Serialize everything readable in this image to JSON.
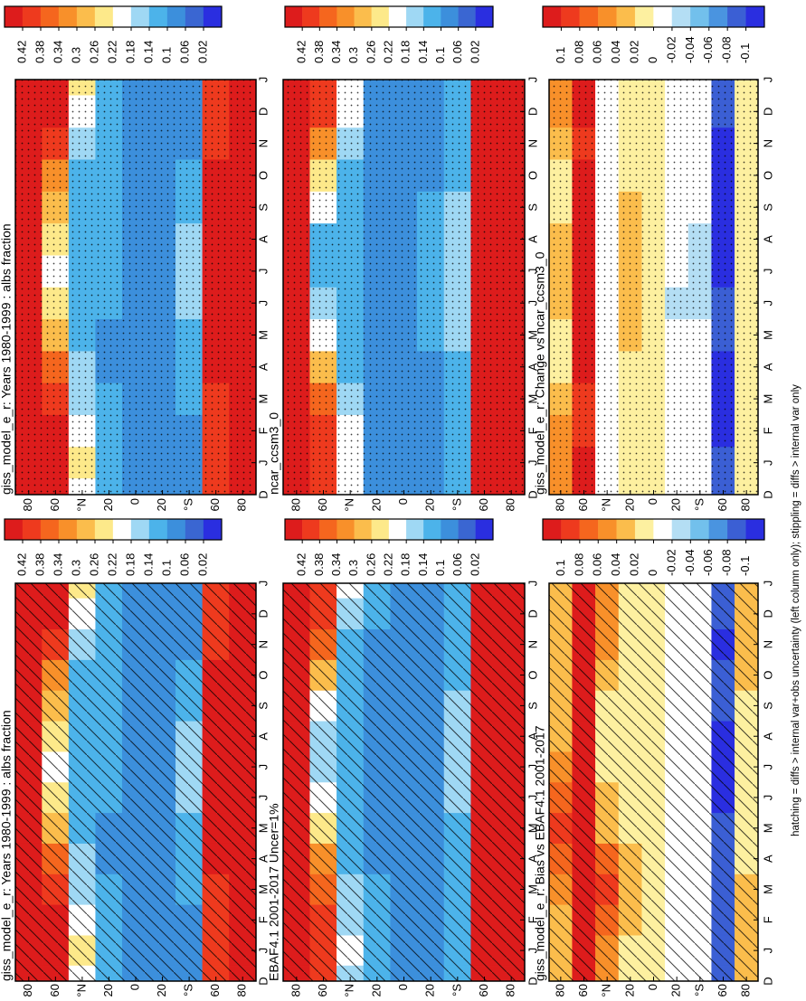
{
  "caption": "hatching = diffs > internal var+obs uncertainty (left column only); stippling = diffs > internal var only",
  "chart_data": [
    {
      "type": "heatmap",
      "title": "giss_model_e_r: Years 1980-1999 : albs fraction",
      "overlay": "hatching",
      "categories": [
        "D",
        "J",
        "F",
        "M",
        "A",
        "M",
        "J",
        "J",
        "A",
        "S",
        "O",
        "N",
        "D",
        "J"
      ],
      "ylim": [
        90,
        -90
      ],
      "yticks": [
        80,
        60,
        {
          "value": 40,
          "label": "°N"
        },
        20,
        0,
        {
          "value": -20,
          "label": "20"
        },
        {
          "value": -40,
          "label": "°S"
        },
        {
          "value": -60,
          "label": "60"
        },
        {
          "value": -80,
          "label": "80"
        }
      ],
      "rows": [
        80,
        60,
        40,
        20,
        0,
        -20,
        -40,
        -60,
        -80
      ],
      "z": [
        [
          0.62,
          0.6,
          0.55,
          0.5,
          0.48,
          0.47,
          0.47,
          0.48,
          0.5,
          0.55,
          0.6,
          0.62
        ],
        [
          0.45,
          0.43,
          0.4,
          0.35,
          0.28,
          0.22,
          0.2,
          0.22,
          0.27,
          0.33,
          0.4,
          0.44
        ],
        [
          0.22,
          0.2,
          0.16,
          0.14,
          0.12,
          0.11,
          0.11,
          0.11,
          0.12,
          0.13,
          0.16,
          0.2
        ],
        [
          0.1,
          0.1,
          0.1,
          0.09,
          0.09,
          0.1,
          0.1,
          0.1,
          0.1,
          0.1,
          0.1,
          0.1
        ],
        [
          0.08,
          0.08,
          0.08,
          0.08,
          0.08,
          0.08,
          0.08,
          0.08,
          0.08,
          0.08,
          0.08,
          0.08
        ],
        [
          0.08,
          0.08,
          0.08,
          0.08,
          0.08,
          0.09,
          0.09,
          0.09,
          0.08,
          0.08,
          0.08,
          0.08
        ],
        [
          0.09,
          0.09,
          0.1,
          0.1,
          0.12,
          0.14,
          0.15,
          0.14,
          0.12,
          0.1,
          0.09,
          0.09
        ],
        [
          0.38,
          0.38,
          0.4,
          0.43,
          0.45,
          0.46,
          0.47,
          0.46,
          0.45,
          0.43,
          0.4,
          0.38
        ],
        [
          0.5,
          0.52,
          0.58,
          0.65,
          0.7,
          0.7,
          0.7,
          0.7,
          0.65,
          0.55,
          0.5,
          0.5
        ]
      ],
      "levels": [
        0.42,
        0.38,
        0.34,
        0.3,
        0.26,
        0.22,
        0.18,
        0.14,
        0.1,
        0.06,
        0.02
      ],
      "colors": [
        "#dd1c1c",
        "#ee3a1e",
        "#f5661e",
        "#f8902a",
        "#fbbd4c",
        "#fde98a",
        "#ffffff",
        "#9fd8f4",
        "#4cb3ea",
        "#3c8fdc",
        "#3a66d2",
        "#2a2ee0"
      ]
    },
    {
      "type": "heatmap",
      "title": "EBAF4.1 2001-2017 Uncer=1%",
      "overlay": "hatching",
      "categories": [
        "D",
        "J",
        "F",
        "M",
        "A",
        "M",
        "J",
        "J",
        "A",
        "S",
        "O",
        "N",
        "D",
        "J"
      ],
      "ylim": [
        90,
        -90
      ],
      "yticks": [
        80,
        60,
        {
          "value": 40,
          "label": "°N"
        },
        20,
        0,
        {
          "value": -20,
          "label": "20"
        },
        {
          "value": -40,
          "label": "°S"
        },
        {
          "value": -60,
          "label": "60"
        },
        {
          "value": -80,
          "label": "80"
        }
      ],
      "rows": [
        80,
        60,
        40,
        20,
        0,
        -20,
        -40,
        -60,
        -80
      ],
      "z": [
        [
          0.6,
          0.6,
          0.58,
          0.55,
          0.52,
          0.5,
          0.48,
          0.48,
          0.52,
          0.56,
          0.6,
          0.6
        ],
        [
          0.4,
          0.38,
          0.36,
          0.3,
          0.22,
          0.18,
          0.16,
          0.16,
          0.2,
          0.26,
          0.34,
          0.38
        ],
        [
          0.18,
          0.17,
          0.14,
          0.12,
          0.1,
          0.1,
          0.1,
          0.1,
          0.1,
          0.11,
          0.13,
          0.16
        ],
        [
          0.1,
          0.1,
          0.1,
          0.09,
          0.09,
          0.09,
          0.09,
          0.09,
          0.09,
          0.09,
          0.09,
          0.1
        ],
        [
          0.09,
          0.09,
          0.09,
          0.09,
          0.09,
          0.09,
          0.09,
          0.09,
          0.09,
          0.09,
          0.09,
          0.09
        ],
        [
          0.08,
          0.08,
          0.08,
          0.08,
          0.08,
          0.08,
          0.08,
          0.08,
          0.08,
          0.08,
          0.08,
          0.08
        ],
        [
          0.1,
          0.1,
          0.11,
          0.12,
          0.13,
          0.15,
          0.16,
          0.16,
          0.14,
          0.12,
          0.1,
          0.1
        ],
        [
          0.48,
          0.47,
          0.5,
          0.52,
          0.55,
          0.57,
          0.59,
          0.57,
          0.55,
          0.53,
          0.51,
          0.48
        ],
        [
          0.5,
          0.55,
          0.6,
          0.65,
          0.7,
          0.7,
          0.7,
          0.7,
          0.65,
          0.55,
          0.5,
          0.48
        ]
      ],
      "levels": [
        0.42,
        0.38,
        0.34,
        0.3,
        0.26,
        0.22,
        0.18,
        0.14,
        0.1,
        0.06,
        0.02
      ],
      "colors": [
        "#dd1c1c",
        "#ee3a1e",
        "#f5661e",
        "#f8902a",
        "#fbbd4c",
        "#fde98a",
        "#ffffff",
        "#9fd8f4",
        "#4cb3ea",
        "#3c8fdc",
        "#3a66d2",
        "#2a2ee0"
      ]
    },
    {
      "type": "heatmap",
      "title": "giss_model_e_r: Bias vs EBAF4.1 2001-2017",
      "overlay": "hatching",
      "categories": [
        "D",
        "J",
        "F",
        "M",
        "A",
        "M",
        "J",
        "J",
        "A",
        "S",
        "O",
        "N",
        "D",
        "J"
      ],
      "ylim": [
        90,
        -90
      ],
      "yticks": [
        80,
        60,
        {
          "value": 40,
          "label": "°N"
        },
        20,
        0,
        {
          "value": -20,
          "label": "20"
        },
        {
          "value": -40,
          "label": "°S"
        },
        {
          "value": -60,
          "label": "60"
        },
        {
          "value": -80,
          "label": "80"
        }
      ],
      "rows": [
        80,
        60,
        40,
        20,
        0,
        -20,
        -40,
        -60,
        -80
      ],
      "z": [
        [
          0.02,
          0.03,
          0.05,
          0.06,
          0.08,
          0.06,
          0.04,
          0.03,
          0.02,
          0.02,
          0.02,
          0.02
        ],
        [
          0.12,
          0.12,
          0.12,
          0.11,
          0.1,
          0.12,
          0.12,
          0.11,
          0.1,
          0.11,
          0.12,
          0.12
        ],
        [
          0.05,
          0.06,
          0.08,
          0.06,
          0.03,
          0.02,
          0.01,
          0.01,
          0.01,
          0.02,
          0.04,
          0.05
        ],
        [
          0.01,
          0.02,
          0.02,
          0.02,
          0.01,
          0.01,
          0.01,
          0.01,
          0.01,
          0.01,
          0.01,
          0.01
        ],
        [
          0.01,
          0.01,
          0.01,
          0.01,
          0.01,
          0.01,
          0.01,
          0.01,
          0.01,
          0.01,
          0.01,
          0.01
        ],
        [
          -0.01,
          -0.01,
          -0.01,
          -0.01,
          -0.01,
          -0.01,
          -0.01,
          -0.01,
          -0.01,
          -0.01,
          -0.01,
          -0.01
        ],
        [
          -0.02,
          -0.02,
          -0.01,
          -0.01,
          -0.01,
          -0.01,
          -0.01,
          -0.02,
          -0.02,
          -0.02,
          -0.02,
          -0.02
        ],
        [
          -0.1,
          -0.09,
          -0.1,
          -0.09,
          -0.1,
          -0.11,
          -0.12,
          -0.11,
          -0.1,
          -0.1,
          -0.11,
          -0.1
        ],
        [
          0.03,
          0.03,
          0.02,
          0,
          0,
          0,
          0,
          0,
          0,
          0.02,
          0.03,
          0.03
        ]
      ],
      "levels": [
        0.1,
        0.08,
        0.06,
        0.04,
        0.02,
        0,
        -0.02,
        -0.04,
        -0.06,
        -0.08,
        -0.1
      ],
      "colors": [
        "#dd1c1c",
        "#ee3a1e",
        "#f5661e",
        "#f8902a",
        "#fbbd4c",
        "#fdf0a0",
        "#ffffff",
        "#b4def4",
        "#72c0ec",
        "#4a94e0",
        "#3b5fd4",
        "#2a2ee0"
      ]
    },
    {
      "type": "heatmap",
      "title": "giss_model_e_r: Years 1980-1999 : albs fraction",
      "overlay": "stippling",
      "categories": [
        "D",
        "J",
        "F",
        "M",
        "A",
        "M",
        "J",
        "J",
        "A",
        "S",
        "O",
        "N",
        "D",
        "J"
      ],
      "ylim": [
        90,
        -90
      ],
      "yticks": [
        80,
        60,
        {
          "value": 40,
          "label": "°N"
        },
        20,
        0,
        {
          "value": -20,
          "label": "20"
        },
        {
          "value": -40,
          "label": "°S"
        },
        {
          "value": -60,
          "label": "60"
        },
        {
          "value": -80,
          "label": "80"
        }
      ],
      "rows": [
        80,
        60,
        40,
        20,
        0,
        -20,
        -40,
        -60,
        -80
      ],
      "z": [
        [
          0.62,
          0.6,
          0.55,
          0.5,
          0.48,
          0.47,
          0.47,
          0.48,
          0.5,
          0.55,
          0.6,
          0.62
        ],
        [
          0.45,
          0.43,
          0.4,
          0.35,
          0.28,
          0.22,
          0.2,
          0.22,
          0.27,
          0.33,
          0.4,
          0.44
        ],
        [
          0.22,
          0.2,
          0.16,
          0.14,
          0.12,
          0.11,
          0.11,
          0.11,
          0.12,
          0.13,
          0.16,
          0.2
        ],
        [
          0.1,
          0.1,
          0.1,
          0.09,
          0.09,
          0.1,
          0.1,
          0.1,
          0.1,
          0.1,
          0.1,
          0.1
        ],
        [
          0.08,
          0.08,
          0.08,
          0.08,
          0.08,
          0.08,
          0.08,
          0.08,
          0.08,
          0.08,
          0.08,
          0.08
        ],
        [
          0.08,
          0.08,
          0.08,
          0.08,
          0.08,
          0.09,
          0.09,
          0.09,
          0.08,
          0.08,
          0.08,
          0.08
        ],
        [
          0.09,
          0.09,
          0.1,
          0.1,
          0.12,
          0.14,
          0.15,
          0.14,
          0.12,
          0.1,
          0.09,
          0.09
        ],
        [
          0.38,
          0.38,
          0.4,
          0.43,
          0.45,
          0.46,
          0.47,
          0.46,
          0.45,
          0.43,
          0.4,
          0.38
        ],
        [
          0.5,
          0.52,
          0.58,
          0.65,
          0.7,
          0.7,
          0.7,
          0.7,
          0.65,
          0.55,
          0.5,
          0.5
        ]
      ],
      "levels": [
        0.42,
        0.38,
        0.34,
        0.3,
        0.26,
        0.22,
        0.18,
        0.14,
        0.1,
        0.06,
        0.02
      ],
      "colors": [
        "#dd1c1c",
        "#ee3a1e",
        "#f5661e",
        "#f8902a",
        "#fbbd4c",
        "#fde98a",
        "#ffffff",
        "#9fd8f4",
        "#4cb3ea",
        "#3c8fdc",
        "#3a66d2",
        "#2a2ee0"
      ]
    },
    {
      "type": "heatmap",
      "title": "ncar_ccsm3_0",
      "overlay": "stippling",
      "categories": [
        "D",
        "J",
        "F",
        "M",
        "A",
        "M",
        "J",
        "J",
        "A",
        "S",
        "O",
        "N",
        "D",
        "J"
      ],
      "ylim": [
        90,
        -90
      ],
      "yticks": [
        80,
        60,
        {
          "value": 40,
          "label": "°N"
        },
        20,
        0,
        {
          "value": -20,
          "label": "20"
        },
        {
          "value": -40,
          "label": "°S"
        },
        {
          "value": -60,
          "label": "60"
        },
        {
          "value": -80,
          "label": "80"
        }
      ],
      "rows": [
        80,
        60,
        40,
        20,
        0,
        -20,
        -40,
        -60,
        -80
      ],
      "z": [
        [
          0.6,
          0.58,
          0.54,
          0.5,
          0.47,
          0.45,
          0.45,
          0.46,
          0.5,
          0.54,
          0.58,
          0.6
        ],
        [
          0.4,
          0.38,
          0.34,
          0.28,
          0.2,
          0.14,
          0.12,
          0.13,
          0.18,
          0.25,
          0.33,
          0.38
        ],
        [
          0.2,
          0.18,
          0.15,
          0.13,
          0.11,
          0.1,
          0.1,
          0.1,
          0.11,
          0.12,
          0.15,
          0.18
        ],
        [
          0.09,
          0.09,
          0.09,
          0.08,
          0.08,
          0.08,
          0.08,
          0.08,
          0.08,
          0.08,
          0.09,
          0.09
        ],
        [
          0.08,
          0.08,
          0.08,
          0.08,
          0.08,
          0.08,
          0.08,
          0.08,
          0.08,
          0.08,
          0.08,
          0.08
        ],
        [
          0.09,
          0.09,
          0.09,
          0.09,
          0.1,
          0.1,
          0.1,
          0.1,
          0.1,
          0.09,
          0.09,
          0.09
        ],
        [
          0.1,
          0.1,
          0.11,
          0.12,
          0.14,
          0.16,
          0.17,
          0.16,
          0.14,
          0.12,
          0.1,
          0.1
        ],
        [
          0.48,
          0.5,
          0.52,
          0.54,
          0.55,
          0.56,
          0.57,
          0.56,
          0.55,
          0.54,
          0.52,
          0.49
        ],
        [
          0.5,
          0.52,
          0.58,
          0.65,
          0.7,
          0.7,
          0.7,
          0.7,
          0.65,
          0.55,
          0.5,
          0.5
        ]
      ],
      "levels": [
        0.42,
        0.38,
        0.34,
        0.3,
        0.26,
        0.22,
        0.18,
        0.14,
        0.1,
        0.06,
        0.02
      ],
      "colors": [
        "#dd1c1c",
        "#ee3a1e",
        "#f5661e",
        "#f8902a",
        "#fbbd4c",
        "#fde98a",
        "#ffffff",
        "#9fd8f4",
        "#4cb3ea",
        "#3c8fdc",
        "#3a66d2",
        "#2a2ee0"
      ]
    },
    {
      "type": "heatmap",
      "title": "giss_model_e_r: Change vs ncar_ccsm3_0",
      "overlay": "stippling",
      "categories": [
        "D",
        "J",
        "F",
        "M",
        "A",
        "M",
        "J",
        "J",
        "A",
        "S",
        "O",
        "N",
        "D",
        "J"
      ],
      "ylim": [
        90,
        -90
      ],
      "yticks": [
        80,
        60,
        {
          "value": 40,
          "label": "°N"
        },
        20,
        0,
        {
          "value": -20,
          "label": "20"
        },
        {
          "value": -40,
          "label": "°S"
        },
        {
          "value": -60,
          "label": "60"
        },
        {
          "value": -80,
          "label": "80"
        }
      ],
      "rows": [
        80,
        60,
        40,
        20,
        0,
        -20,
        -40,
        -60,
        -80
      ],
      "z": [
        [
          0.05,
          0.04,
          0.02,
          0.01,
          0.01,
          0.02,
          0.02,
          0.02,
          0.01,
          0.01,
          0.03,
          0.05
        ],
        [
          0.1,
          0.08,
          0.09,
          0.1,
          0.1,
          0.11,
          0.12,
          0.11,
          0.1,
          0.1,
          0.09,
          0.1
        ],
        [
          -0.02,
          -0.02,
          -0.01,
          -0.01,
          -0.01,
          -0.01,
          -0.02,
          -0.02,
          -0.02,
          -0.02,
          -0.02,
          -0.02
        ],
        [
          0.01,
          0.01,
          0.01,
          0.01,
          0.03,
          0.03,
          0.03,
          0.03,
          0.02,
          0.01,
          0.01,
          0.01
        ],
        [
          0,
          0,
          0,
          0,
          0,
          0,
          0,
          0,
          0,
          0,
          0,
          0
        ],
        [
          -0.01,
          -0.01,
          -0.01,
          -0.02,
          -0.02,
          -0.03,
          -0.02,
          -0.02,
          -0.02,
          -0.01,
          -0.01,
          -0.01
        ],
        [
          -0.01,
          -0.01,
          -0.01,
          -0.02,
          -0.02,
          -0.03,
          -0.03,
          -0.03,
          -0.02,
          -0.02,
          -0.01,
          -0.01
        ],
        [
          -0.1,
          -0.11,
          -0.12,
          -0.11,
          -0.1,
          -0.1,
          -0.11,
          -0.11,
          -0.11,
          -0.11,
          -0.12,
          -0.1
        ],
        [
          0.01,
          0.01,
          0,
          0,
          0,
          0,
          0,
          0,
          0,
          0,
          0.01,
          0.01
        ]
      ],
      "levels": [
        0.1,
        0.08,
        0.06,
        0.04,
        0.02,
        0,
        -0.02,
        -0.04,
        -0.06,
        -0.08,
        -0.1
      ],
      "colors": [
        "#dd1c1c",
        "#ee3a1e",
        "#f5661e",
        "#f8902a",
        "#fbbd4c",
        "#fdf0a0",
        "#ffffff",
        "#b4def4",
        "#72c0ec",
        "#4a94e0",
        "#3b5fd4",
        "#2a2ee0"
      ]
    }
  ]
}
